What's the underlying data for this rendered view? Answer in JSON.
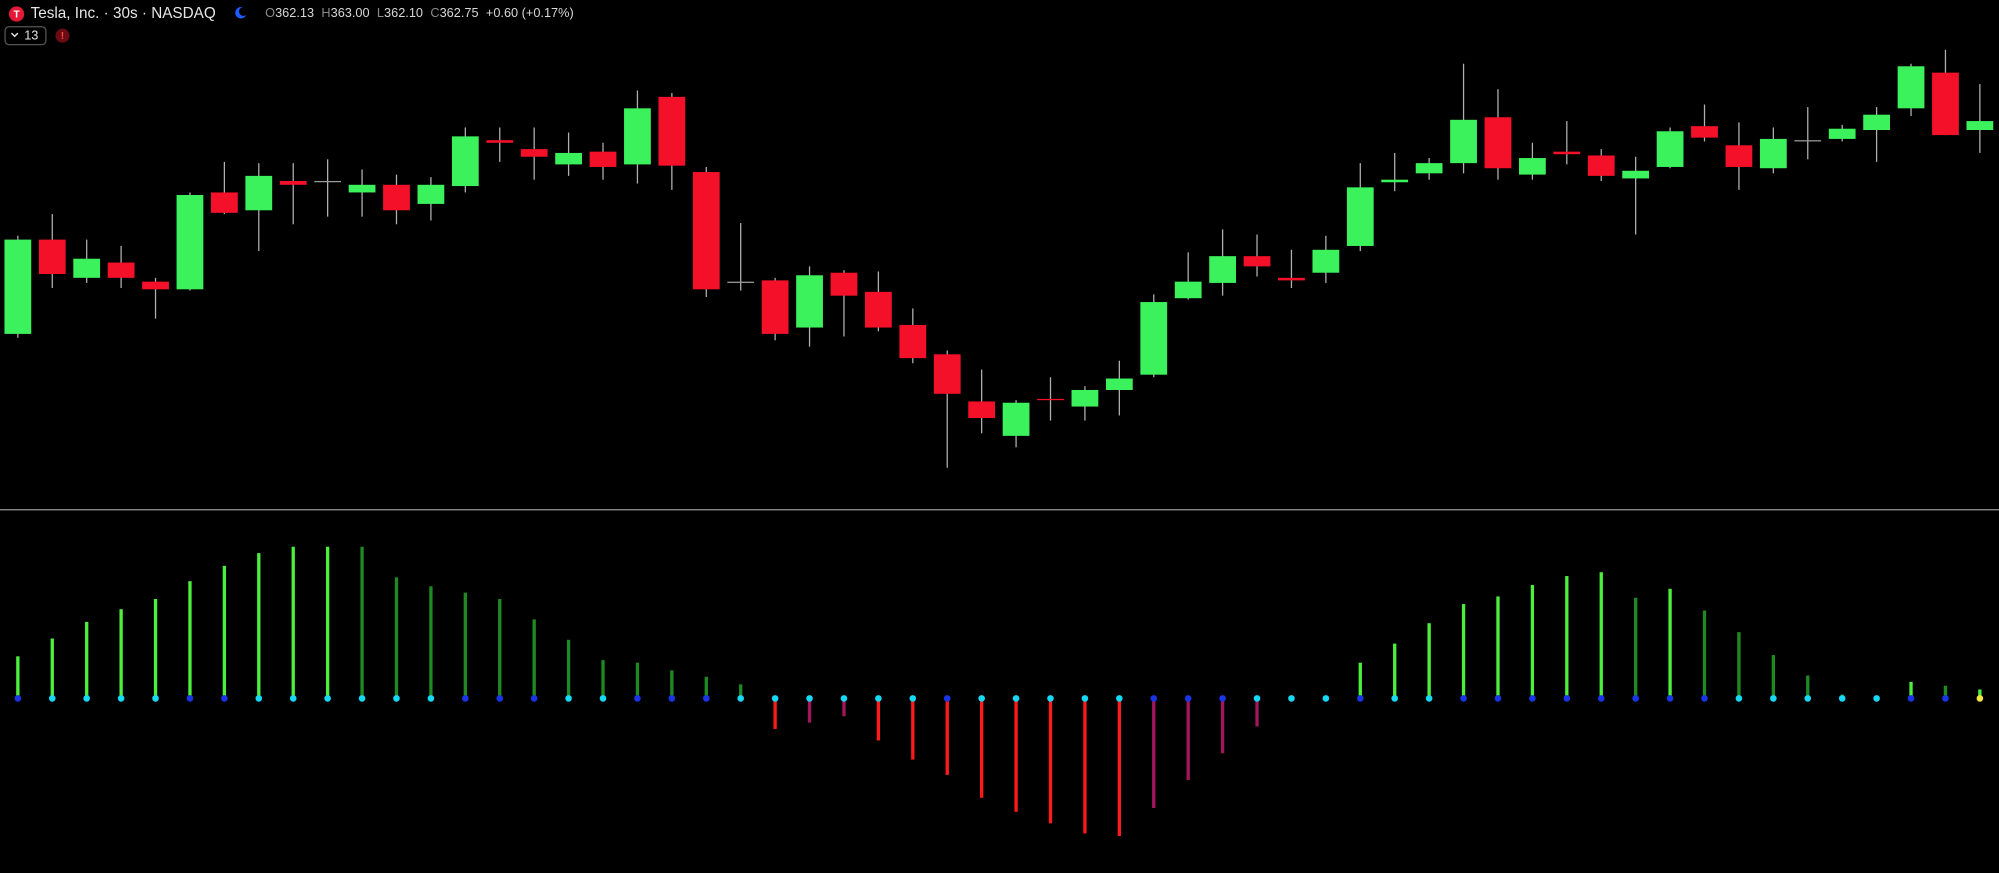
{
  "header": {
    "title": "Tesla, Inc. · 30s · NASDAQ",
    "ohlc": [
      {
        "label": "O",
        "value": "362.13"
      },
      {
        "label": "H",
        "value": "363.00"
      },
      {
        "label": "L",
        "value": "362.10"
      },
      {
        "label": "C",
        "value": "362.75"
      }
    ],
    "change": "+0.60 (+0.17%)",
    "indicator_count": "13"
  },
  "chart_data": [
    {
      "type": "candlestick",
      "up_color": "#3cf25c",
      "down_color": "#f5102a",
      "doji_color": "#9a9a9a",
      "wick_color": "#b0b0b0",
      "ylim": [
        356.65,
        364.65
      ],
      "open": [
        359.41,
        360.89,
        360.29,
        360.53,
        360.23,
        360.11,
        361.63,
        361.35,
        361.81,
        361.81,
        361.63,
        361.75,
        361.45,
        361.73,
        362.45,
        362.31,
        362.07,
        362.27,
        362.07,
        363.13,
        361.95,
        360.23,
        360.25,
        359.51,
        360.37,
        360.07,
        359.55,
        359.09,
        358.35,
        357.81,
        358.39,
        358.27,
        358.53,
        358.77,
        359.97,
        360.21,
        360.63,
        360.29,
        360.37,
        360.79,
        361.79,
        361.93,
        362.09,
        362.81,
        361.91,
        362.27,
        362.21,
        361.85,
        362.03,
        362.67,
        362.37,
        362.01,
        362.45,
        362.47,
        362.61,
        362.95,
        363.51,
        362.61
      ],
      "high": [
        360.95,
        361.29,
        360.89,
        360.79,
        360.29,
        361.63,
        362.11,
        362.09,
        362.09,
        362.15,
        361.99,
        361.91,
        361.87,
        362.65,
        362.65,
        362.65,
        362.57,
        362.41,
        363.23,
        363.19,
        362.03,
        361.15,
        360.29,
        360.47,
        360.41,
        360.39,
        359.81,
        359.15,
        358.85,
        358.37,
        358.73,
        358.59,
        358.99,
        360.03,
        360.69,
        361.05,
        360.97,
        360.73,
        360.95,
        362.09,
        362.25,
        362.17,
        363.65,
        363.25,
        362.41,
        362.75,
        362.31,
        362.19,
        362.65,
        363.01,
        362.73,
        362.65,
        362.97,
        362.69,
        362.97,
        363.65,
        363.87,
        363.33
      ],
      "low": [
        359.35,
        360.13,
        360.21,
        360.13,
        359.65,
        360.09,
        361.29,
        360.71,
        361.13,
        361.25,
        361.25,
        361.13,
        361.19,
        361.63,
        362.11,
        361.83,
        361.89,
        361.83,
        361.77,
        361.67,
        359.99,
        360.09,
        359.31,
        359.21,
        359.37,
        359.45,
        358.95,
        357.31,
        357.85,
        357.63,
        358.05,
        358.05,
        358.13,
        358.73,
        359.95,
        360.01,
        360.31,
        360.13,
        360.21,
        360.71,
        361.65,
        361.83,
        361.93,
        361.83,
        361.83,
        362.07,
        361.81,
        360.97,
        362.01,
        362.43,
        361.67,
        361.93,
        362.15,
        362.43,
        362.11,
        362.83,
        362.53,
        362.25
      ],
      "close": [
        360.89,
        360.35,
        360.59,
        360.29,
        360.11,
        361.59,
        361.31,
        361.89,
        361.75,
        361.81,
        361.75,
        361.35,
        361.75,
        362.51,
        362.41,
        362.19,
        362.25,
        362.03,
        362.95,
        362.05,
        360.11,
        360.23,
        359.41,
        360.33,
        360.01,
        359.51,
        359.03,
        358.47,
        358.09,
        358.33,
        358.37,
        358.53,
        358.71,
        359.91,
        360.23,
        360.63,
        360.47,
        360.25,
        360.73,
        361.71,
        361.83,
        362.09,
        362.77,
        362.01,
        362.17,
        362.23,
        361.89,
        361.97,
        362.59,
        362.49,
        362.03,
        362.47,
        362.45,
        362.63,
        362.85,
        363.61,
        362.53,
        362.75
      ]
    },
    {
      "type": "bar",
      "ylim": [
        -1.37,
        1.48
      ],
      "values": [
        0.33,
        0.47,
        0.6,
        0.7,
        0.78,
        0.92,
        1.04,
        1.14,
        1.19,
        1.19,
        1.19,
        0.95,
        0.88,
        0.83,
        0.78,
        0.62,
        0.46,
        0.3,
        0.28,
        0.22,
        0.17,
        0.11,
        -0.24,
        -0.19,
        -0.14,
        -0.33,
        -0.48,
        -0.6,
        -0.78,
        -0.89,
        -0.98,
        -1.06,
        -1.08,
        -0.86,
        -0.64,
        -0.43,
        -0.22,
        0,
        0,
        0.28,
        0.43,
        0.59,
        0.74,
        0.8,
        0.89,
        0.96,
        0.99,
        0.79,
        0.86,
        0.69,
        0.52,
        0.34,
        0.18,
        0.03,
        0.02,
        0.13,
        0.1,
        0.07
      ],
      "bar_colors": [
        "#4cf03c",
        "#4cf03c",
        "#4cf03c",
        "#4cf03c",
        "#4cf03c",
        "#4cf03c",
        "#4cf03c",
        "#4cf03c",
        "#4cf03c",
        "#4cf03c",
        "#1f8a22",
        "#1f8a22",
        "#1f8a22",
        "#1f8a22",
        "#1f8a22",
        "#1f8a22",
        "#1f8a22",
        "#1f8a22",
        "#1f8a22",
        "#1f8a22",
        "#1f8a22",
        "#1f8a22",
        "#ff1a1a",
        "#a3155c",
        "#a3155c",
        "#ff1a1a",
        "#ff1a1a",
        "#ff1a1a",
        "#ff1a1a",
        "#ff1a1a",
        "#ff1a1a",
        "#ff1a1a",
        "#ff1a1a",
        "#a3155c",
        "#a3155c",
        "#a3155c",
        "#a3155c",
        "#4cf03c",
        "#4cf03c",
        "#4cf03c",
        "#4cf03c",
        "#4cf03c",
        "#4cf03c",
        "#4cf03c",
        "#4cf03c",
        "#4cf03c",
        "#4cf03c",
        "#1f8a22",
        "#4cf03c",
        "#1f8a22",
        "#1f8a22",
        "#1f8a22",
        "#1f8a22",
        "#1f8a22",
        "#1f8a22",
        "#4cf03c",
        "#1f8a22",
        "#4cf03c"
      ],
      "dot_colors": [
        "#1a35e8",
        "#17d8f5",
        "#17d8f5",
        "#17d8f5",
        "#17d8f5",
        "#1a35e8",
        "#1a35e8",
        "#17d8f5",
        "#17d8f5",
        "#17d8f5",
        "#17d8f5",
        "#17d8f5",
        "#17d8f5",
        "#1a35e8",
        "#1a35e8",
        "#1a35e8",
        "#17d8f5",
        "#17d8f5",
        "#1a35e8",
        "#1a35e8",
        "#1a35e8",
        "#17d8f5",
        "#17d8f5",
        "#17d8f5",
        "#17d8f5",
        "#17d8f5",
        "#17d8f5",
        "#1a35e8",
        "#17d8f5",
        "#17d8f5",
        "#17d8f5",
        "#17d8f5",
        "#17d8f5",
        "#1a35e8",
        "#1a35e8",
        "#1a35e8",
        "#17d8f5",
        "#17d8f5",
        "#17d8f5",
        "#1a35e8",
        "#17d8f5",
        "#17d8f5",
        "#1a35e8",
        "#1a35e8",
        "#1a35e8",
        "#1a35e8",
        "#1a35e8",
        "#1a35e8",
        "#1a35e8",
        "#1a35e8",
        "#17d8f5",
        "#17d8f5",
        "#17d8f5",
        "#17d8f5",
        "#17d8f5",
        "#1a35e8",
        "#1a35e8",
        "#f5e642"
      ]
    }
  ]
}
